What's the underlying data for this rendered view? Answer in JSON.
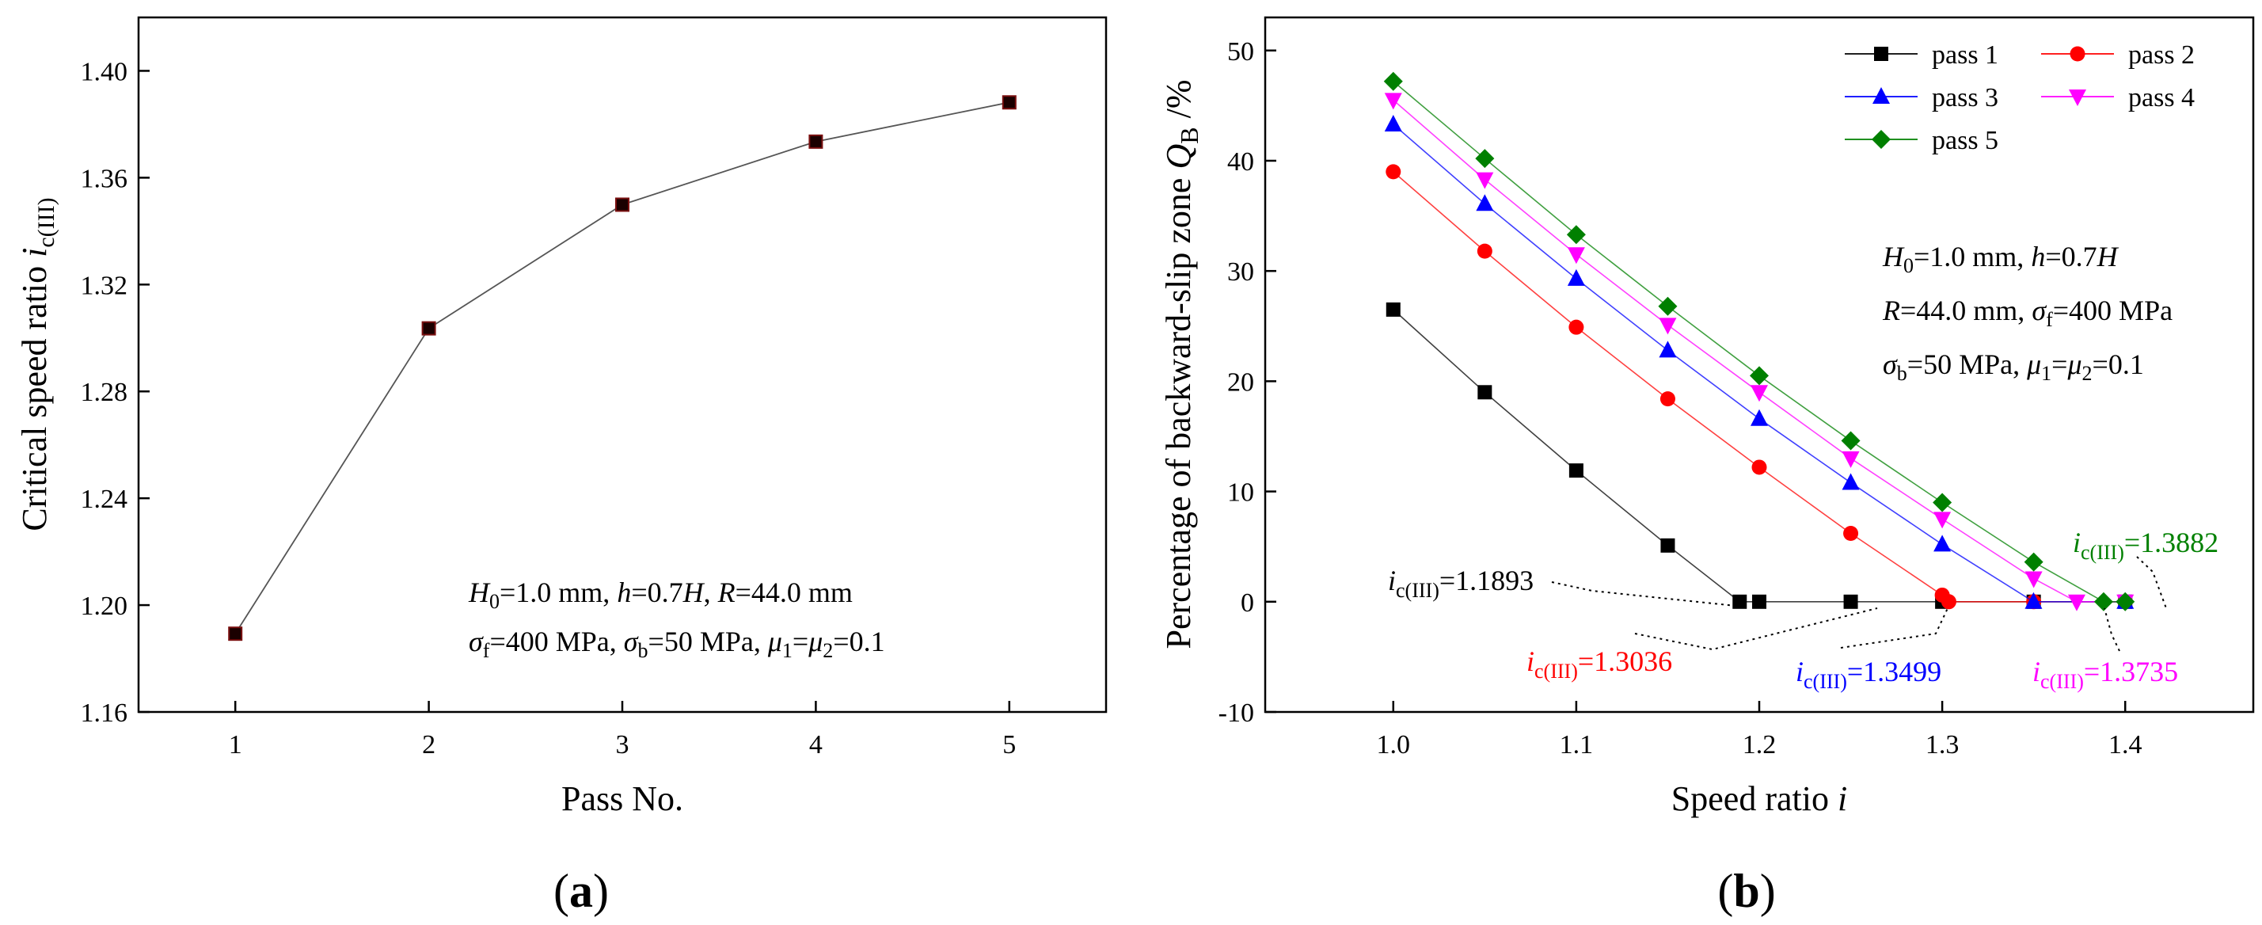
{
  "chart_data": [
    {
      "panel_label": "(a)",
      "panel_letter": "a",
      "type": "line",
      "title": "",
      "xlabel": "Pass No.",
      "ylabel": "Critical speed ratio i",
      "ylabel_italic": "i",
      "ylabel_sub": "c(III)",
      "xlim": [
        0.5,
        5.5
      ],
      "ylim": [
        1.16,
        1.42
      ],
      "xticks": [
        1,
        2,
        3,
        4,
        5
      ],
      "yticks": [
        1.16,
        1.2,
        1.24,
        1.28,
        1.32,
        1.36,
        1.4
      ],
      "ytick_labels": [
        "1.16",
        "1.20",
        "1.24",
        "1.28",
        "1.32",
        "1.36",
        "1.40"
      ],
      "series": [
        {
          "name": "i_c(III)",
          "color": "#000000",
          "x": [
            1,
            2,
            3,
            4,
            5
          ],
          "y": [
            1.1893,
            1.3036,
            1.3499,
            1.3735,
            1.3882
          ]
        }
      ],
      "annotations": [
        {
          "lines": [
            "H0=1.0 mm, h=0.7H, R=44.0 mm",
            "σf=400 MPa, σb=50 MPa, μ1=μ2=0.1"
          ]
        }
      ]
    },
    {
      "panel_label": "(b)",
      "panel_letter": "b",
      "type": "line",
      "title": "",
      "xlabel": "Speed ratio i",
      "ylabel": "Percentage of backward-slip zone Q_B /%",
      "xlim": [
        0.93,
        1.47
      ],
      "ylim": [
        -10,
        53
      ],
      "xticks": [
        1.0,
        1.1,
        1.2,
        1.3,
        1.4
      ],
      "xtick_labels": [
        "1.0",
        "1.1",
        "1.2",
        "1.3",
        "1.4"
      ],
      "yticks": [
        -10,
        0,
        10,
        20,
        30,
        40,
        50
      ],
      "series": [
        {
          "name": "pass 1",
          "color": "#000000",
          "marker": "square",
          "x": [
            1.0,
            1.05,
            1.1,
            1.15,
            1.1893,
            1.2,
            1.25,
            1.3,
            1.35,
            1.4
          ],
          "y": [
            26.5,
            19.0,
            11.9,
            5.1,
            0,
            0,
            0,
            0,
            0,
            0
          ]
        },
        {
          "name": "pass 2",
          "color": "#ff0000",
          "marker": "circle",
          "x": [
            1.0,
            1.05,
            1.1,
            1.15,
            1.2,
            1.25,
            1.3,
            1.3036,
            1.35,
            1.4
          ],
          "y": [
            39.0,
            31.8,
            24.9,
            18.4,
            12.2,
            6.2,
            0.6,
            0,
            0,
            0
          ]
        },
        {
          "name": "pass 3",
          "color": "#0000ff",
          "marker": "triangle-up",
          "x": [
            1.0,
            1.05,
            1.1,
            1.15,
            1.2,
            1.25,
            1.3,
            1.3499,
            1.4
          ],
          "y": [
            43.3,
            36.1,
            29.3,
            22.8,
            16.6,
            10.8,
            5.2,
            0,
            0
          ]
        },
        {
          "name": "pass 4",
          "color": "#ff00ff",
          "marker": "triangle-down",
          "x": [
            1.0,
            1.05,
            1.1,
            1.15,
            1.2,
            1.25,
            1.3,
            1.35,
            1.3735,
            1.4
          ],
          "y": [
            45.5,
            38.3,
            31.5,
            25.1,
            19.0,
            13.0,
            7.5,
            2.1,
            0,
            0
          ]
        },
        {
          "name": "pass 5",
          "color": "#008000",
          "marker": "diamond",
          "x": [
            1.0,
            1.05,
            1.1,
            1.15,
            1.2,
            1.25,
            1.3,
            1.35,
            1.3882,
            1.4
          ],
          "y": [
            47.2,
            40.2,
            33.3,
            26.8,
            20.5,
            14.6,
            9.0,
            3.6,
            0,
            0
          ]
        }
      ],
      "legend_position": "top-right",
      "annotations": [
        {
          "lines": [
            "H0=1.0 mm, h=0.7H",
            "R=44.0 mm, σf=400 MPa",
            "σb=50 MPa, μ1=μ2=0.1"
          ]
        },
        {
          "text": "i_c(III)=1.1893",
          "value": "=1.1893",
          "color": "#000000",
          "points_to": [
            1.1893,
            0
          ]
        },
        {
          "text": "i_c(III)=1.3036",
          "value": "=1.3036",
          "color": "#ff0000",
          "points_to": [
            1.3036,
            0
          ]
        },
        {
          "text": "i_c(III)=1.3499",
          "value": "=1.3499",
          "color": "#0000ff",
          "points_to": [
            1.3499,
            0
          ]
        },
        {
          "text": "i_c(III)=1.3735",
          "value": "=1.3735",
          "color": "#ff00ff",
          "points_to": [
            1.3735,
            0
          ]
        },
        {
          "text": "i_c(III)=1.3882",
          "value": "=1.3882",
          "color": "#008000",
          "points_to": [
            1.3882,
            0
          ]
        }
      ]
    }
  ]
}
